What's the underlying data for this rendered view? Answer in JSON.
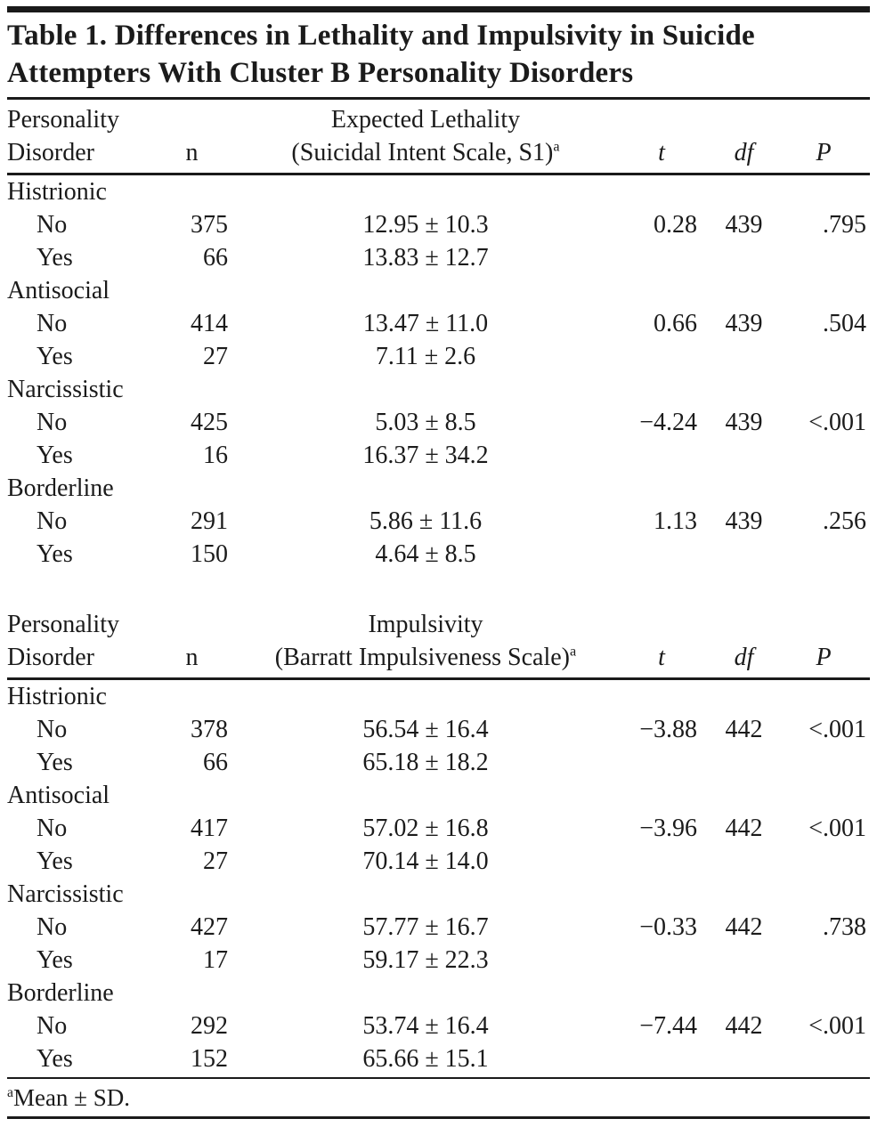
{
  "page": {
    "title": "Table 1. Differences in Lethality and Impulsivity in Suicide Attempters With Cluster B Personality Disorders",
    "footnote": {
      "marker": "a",
      "text": "Mean ± SD."
    }
  },
  "columns": {
    "disorder_header_line1": "Personality",
    "disorder_header_line2": "Disorder",
    "n": "n",
    "t": "t",
    "df": "df",
    "p": "P"
  },
  "sections": [
    {
      "id": "lethality",
      "measure_line1": "Expected Lethality",
      "measure_line2": "(Suicidal Intent Scale, S1)",
      "measure_sup": "a",
      "groups": [
        {
          "disorder": "Histrionic",
          "rows": [
            {
              "label": "No",
              "n": "375",
              "mean_sd": "12.95 ± 10.3",
              "t": "0.28",
              "df": "439",
              "p": ".795"
            },
            {
              "label": "Yes",
              "n": "66",
              "mean_sd": "13.83 ± 12.7",
              "t": "",
              "df": "",
              "p": ""
            }
          ]
        },
        {
          "disorder": "Antisocial",
          "rows": [
            {
              "label": "No",
              "n": "414",
              "mean_sd": "13.47 ± 11.0",
              "t": "0.66",
              "df": "439",
              "p": ".504"
            },
            {
              "label": "Yes",
              "n": "27",
              "mean_sd": "7.11 ± 2.6",
              "t": "",
              "df": "",
              "p": ""
            }
          ]
        },
        {
          "disorder": "Narcissistic",
          "rows": [
            {
              "label": "No",
              "n": "425",
              "mean_sd": "5.03 ± 8.5",
              "t": "−4.24",
              "df": "439",
              "p": "<.001"
            },
            {
              "label": "Yes",
              "n": "16",
              "mean_sd": "16.37 ± 34.2",
              "t": "",
              "df": "",
              "p": ""
            }
          ]
        },
        {
          "disorder": "Borderline",
          "rows": [
            {
              "label": "No",
              "n": "291",
              "mean_sd": "5.86 ± 11.6",
              "t": "1.13",
              "df": "439",
              "p": ".256"
            },
            {
              "label": "Yes",
              "n": "150",
              "mean_sd": "4.64 ± 8.5",
              "t": "",
              "df": "",
              "p": ""
            }
          ]
        }
      ]
    },
    {
      "id": "impulsivity",
      "measure_line1": "Impulsivity",
      "measure_line2": "(Barratt Impulsiveness Scale)",
      "measure_sup": "a",
      "groups": [
        {
          "disorder": "Histrionic",
          "rows": [
            {
              "label": "No",
              "n": "378",
              "mean_sd": "56.54 ± 16.4",
              "t": "−3.88",
              "df": "442",
              "p": "<.001"
            },
            {
              "label": "Yes",
              "n": "66",
              "mean_sd": "65.18 ± 18.2",
              "t": "",
              "df": "",
              "p": ""
            }
          ]
        },
        {
          "disorder": "Antisocial",
          "rows": [
            {
              "label": "No",
              "n": "417",
              "mean_sd": "57.02 ± 16.8",
              "t": "−3.96",
              "df": "442",
              "p": "<.001"
            },
            {
              "label": "Yes",
              "n": "27",
              "mean_sd": "70.14 ± 14.0",
              "t": "",
              "df": "",
              "p": ""
            }
          ]
        },
        {
          "disorder": "Narcissistic",
          "rows": [
            {
              "label": "No",
              "n": "427",
              "mean_sd": "57.77 ± 16.7",
              "t": "−0.33",
              "df": "442",
              "p": ".738"
            },
            {
              "label": "Yes",
              "n": "17",
              "mean_sd": "59.17 ± 22.3",
              "t": "",
              "df": "",
              "p": ""
            }
          ]
        },
        {
          "disorder": "Borderline",
          "rows": [
            {
              "label": "No",
              "n": "292",
              "mean_sd": "53.74 ± 16.4",
              "t": "−7.44",
              "df": "442",
              "p": "<.001"
            },
            {
              "label": "Yes",
              "n": "152",
              "mean_sd": "65.66 ± 15.1",
              "t": "",
              "df": "",
              "p": ""
            }
          ]
        }
      ]
    }
  ],
  "colors": {
    "text": "#1b1b1b",
    "rule": "#1a1a1a",
    "background": "#ffffff"
  }
}
